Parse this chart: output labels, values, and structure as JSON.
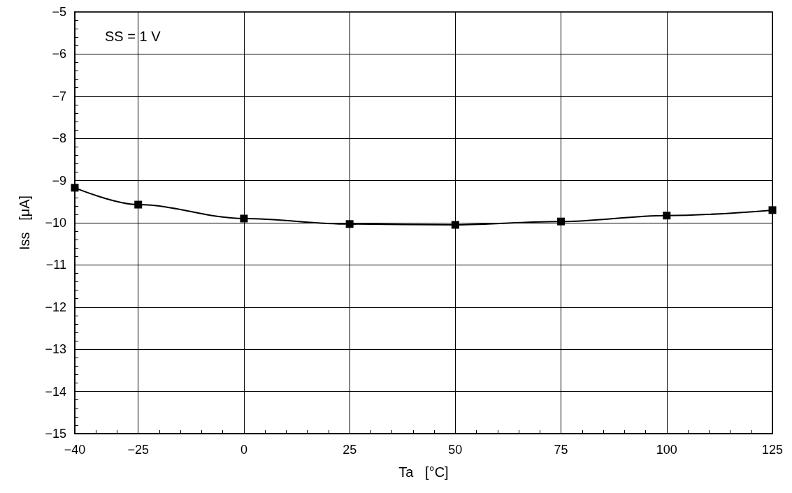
{
  "chart_data": {
    "type": "line",
    "xlabel": "Ta   [°C]",
    "ylabel": "Iss   [μA]",
    "annotations": [
      "SS = 1 V"
    ],
    "x": [
      -40,
      -25,
      0,
      25,
      50,
      75,
      100,
      125
    ],
    "series": [
      {
        "color": "#000000",
        "values": [
          -9.17,
          -9.57,
          -9.9,
          -10.03,
          -10.05,
          -9.97,
          -9.83,
          -9.7
        ]
      }
    ],
    "xlim": [
      -40,
      125
    ],
    "xticks": [
      -40,
      -25,
      0,
      25,
      50,
      75,
      100,
      125
    ],
    "ylim": [
      -15,
      -5
    ],
    "yticks": [
      -15,
      -14,
      -13,
      -12,
      -11,
      -10,
      -9,
      -8,
      -7,
      -6,
      -5
    ],
    "grid": true,
    "marker": "square",
    "line_style": "solid"
  }
}
